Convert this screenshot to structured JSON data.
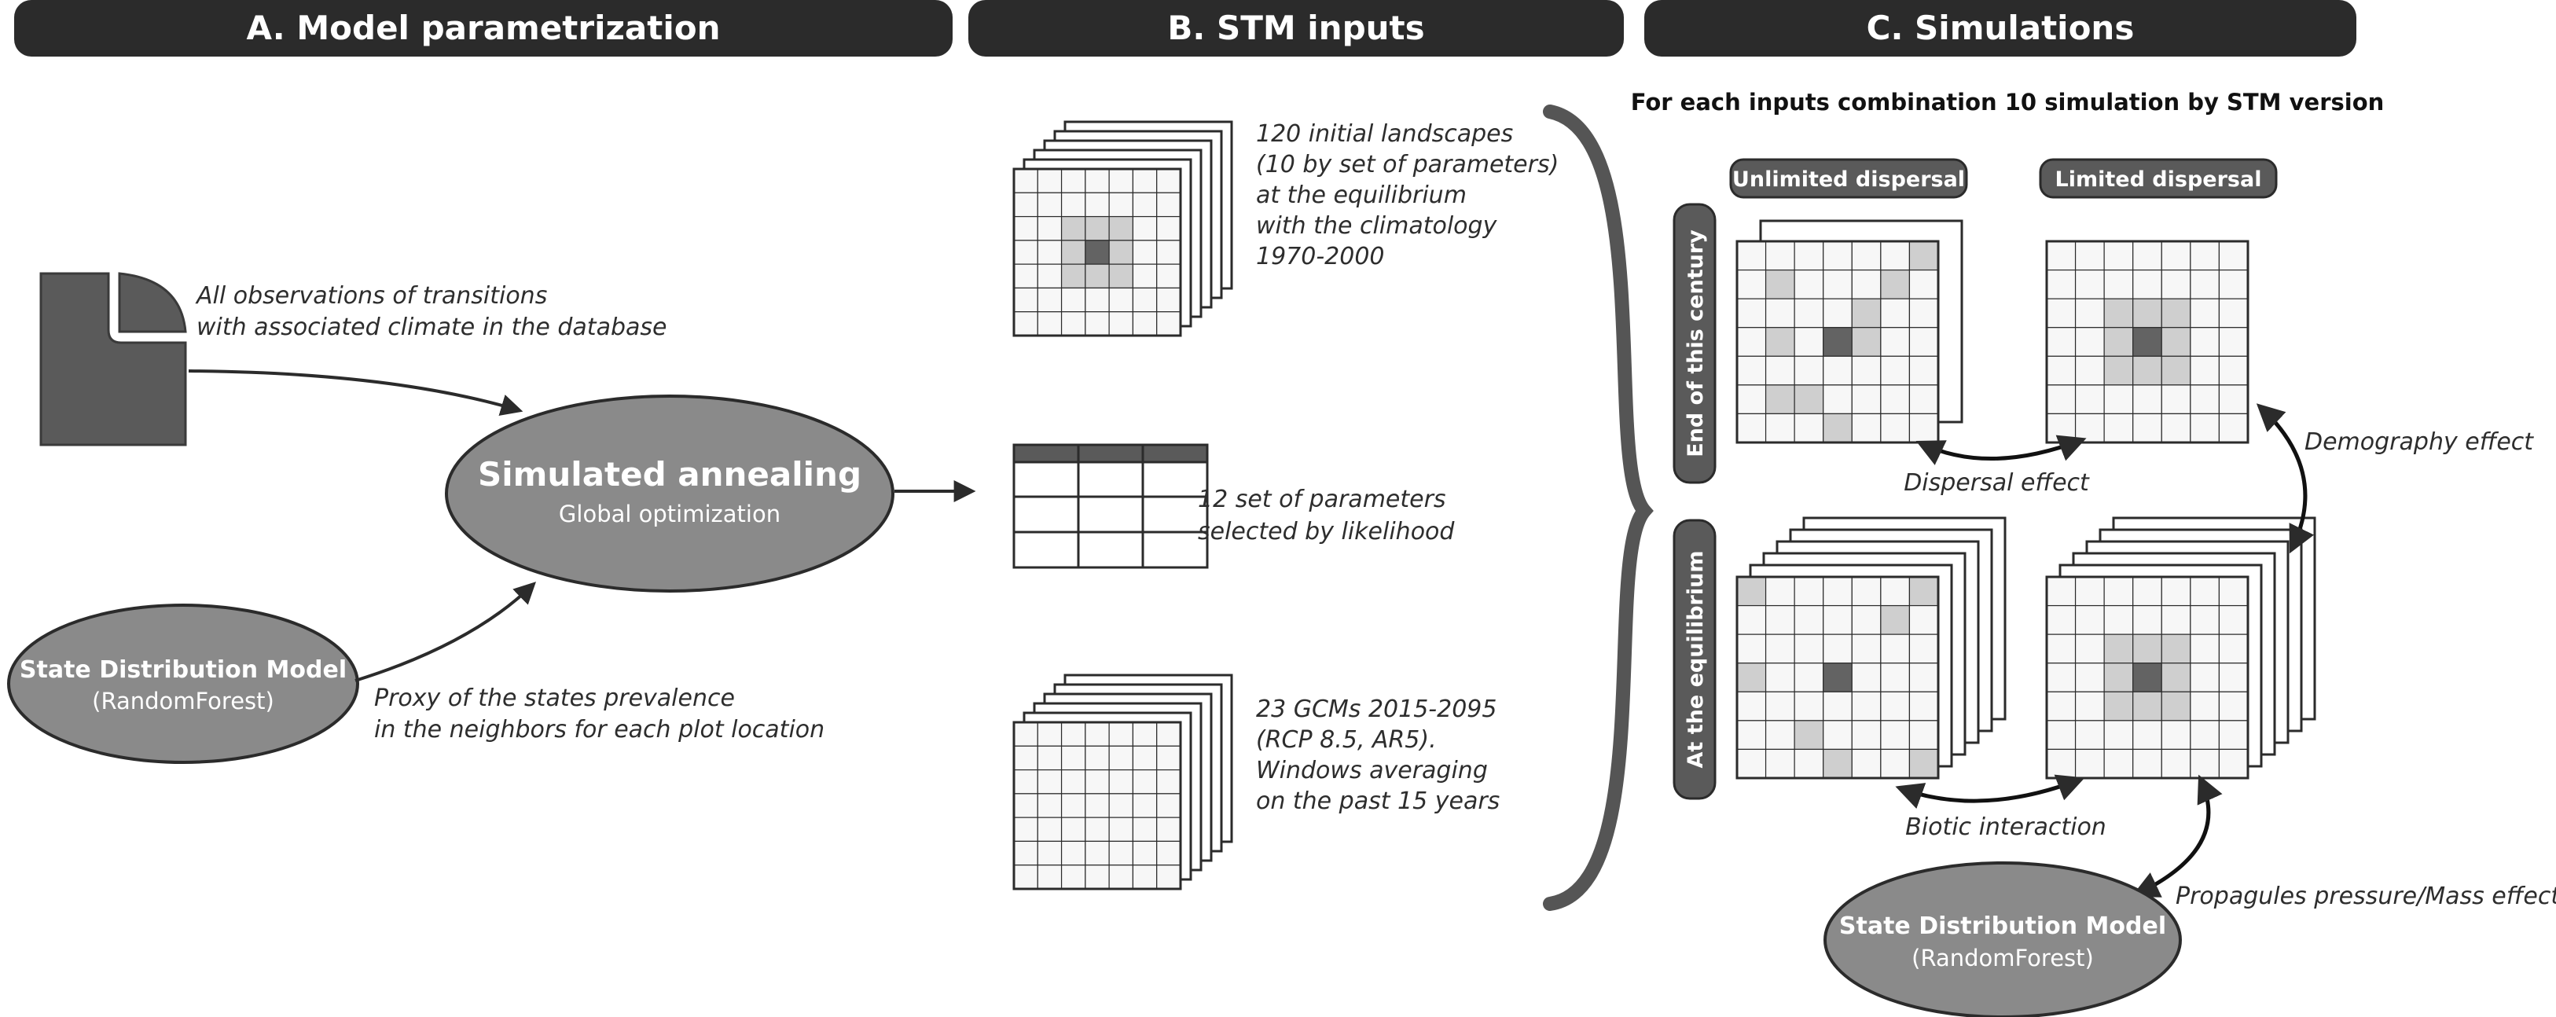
{
  "headers": {
    "a": "A. Model parametrization",
    "b": "B. STM inputs",
    "c": "C. Simulations"
  },
  "panel_a": {
    "observations_lines": [
      "All observations of transitions",
      "with associated climate in the database"
    ],
    "annealing_title": "Simulated annealing",
    "annealing_sub": "Global optimization",
    "sdm_title": "State Distribution Model",
    "sdm_sub": "(RandomForest)",
    "proxy_lines": [
      "Proxy of the states prevalence",
      "in the neighbors for each plot location"
    ]
  },
  "panel_b": {
    "landscapes_lines": [
      "120 initial landscapes",
      "(10 by set of parameters)",
      "at the equilibrium",
      "with the climatology",
      "1970-2000"
    ],
    "params_lines": [
      "12 set of parameters",
      "selected by likelihood"
    ],
    "gcm_lines": [
      "23 GCMs 2015-2095",
      "(RCP 8.5, AR5).",
      "Windows averaging",
      "on the past 15 years"
    ]
  },
  "panel_c": {
    "note": "For each inputs combination 10 simulation by STM version",
    "unlimited": "Unlimited dispersal",
    "limited": "Limited dispersal",
    "row_end": "End of this century",
    "row_eq": "At the equilibrium",
    "dispersal_effect": "Dispersal effect",
    "demography_effect": "Demography effect",
    "biotic_interaction": "Biotic interaction",
    "propagules": "Propagules pressure/Mass effect",
    "sdm_title": "State Distribution Model",
    "sdm_sub": "(RandomForest)"
  },
  "colors": {
    "dark": "#2b2b2b",
    "mid_gray": "#8a8a8a",
    "cell_dark": "#636363",
    "cell_light": "#cfcfcf",
    "cell_empty": "#f7f7f7"
  }
}
